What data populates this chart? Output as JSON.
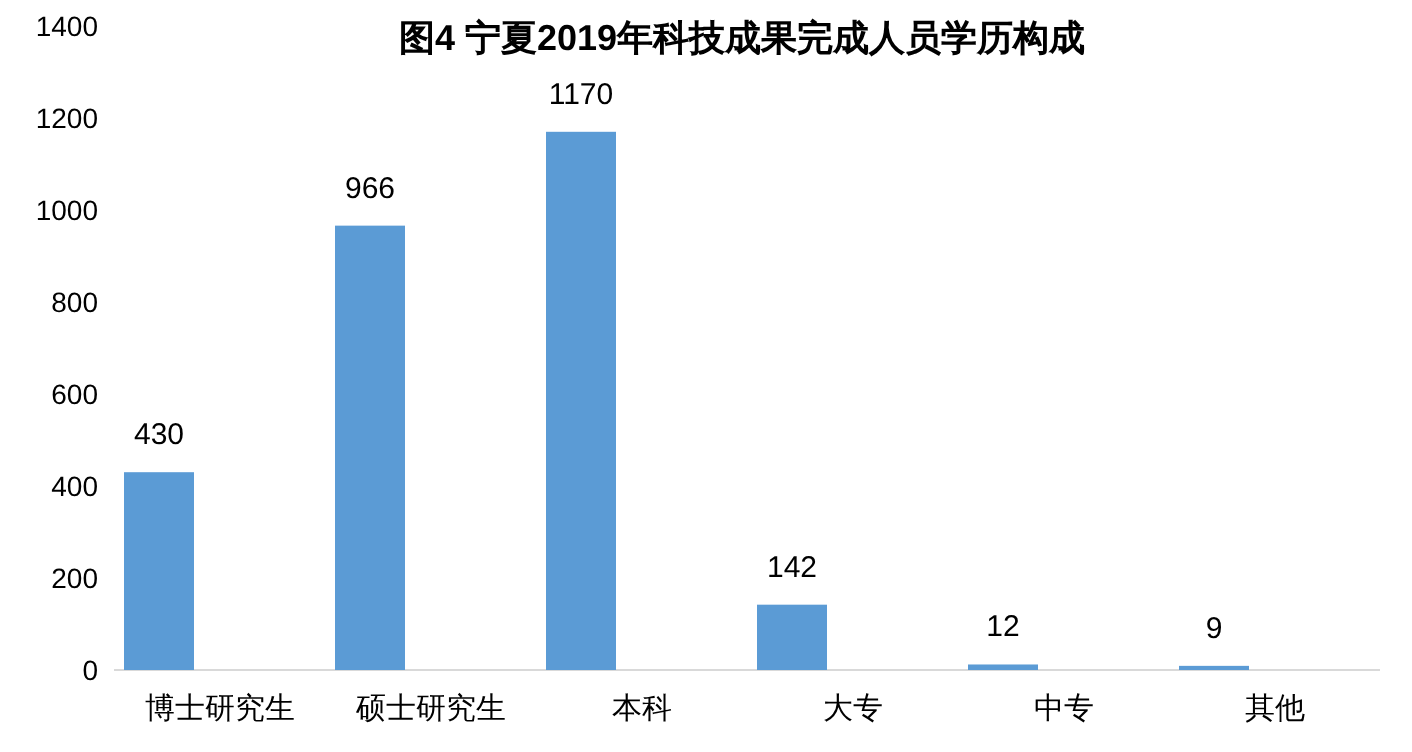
{
  "chart_data": {
    "type": "bar",
    "title": "图4  宁夏2019年科技成果完成人员学历构成",
    "categories": [
      "博士研究生",
      "硕士研究生",
      "本科",
      "大专",
      "中专",
      "其他"
    ],
    "values": [
      430,
      966,
      1170,
      142,
      12,
      9
    ],
    "color": "#5b9bd5",
    "ylim": [
      0,
      1400
    ],
    "yticks": [
      0,
      200,
      400,
      600,
      800,
      1000,
      1200,
      1400
    ],
    "data_labels": true
  }
}
